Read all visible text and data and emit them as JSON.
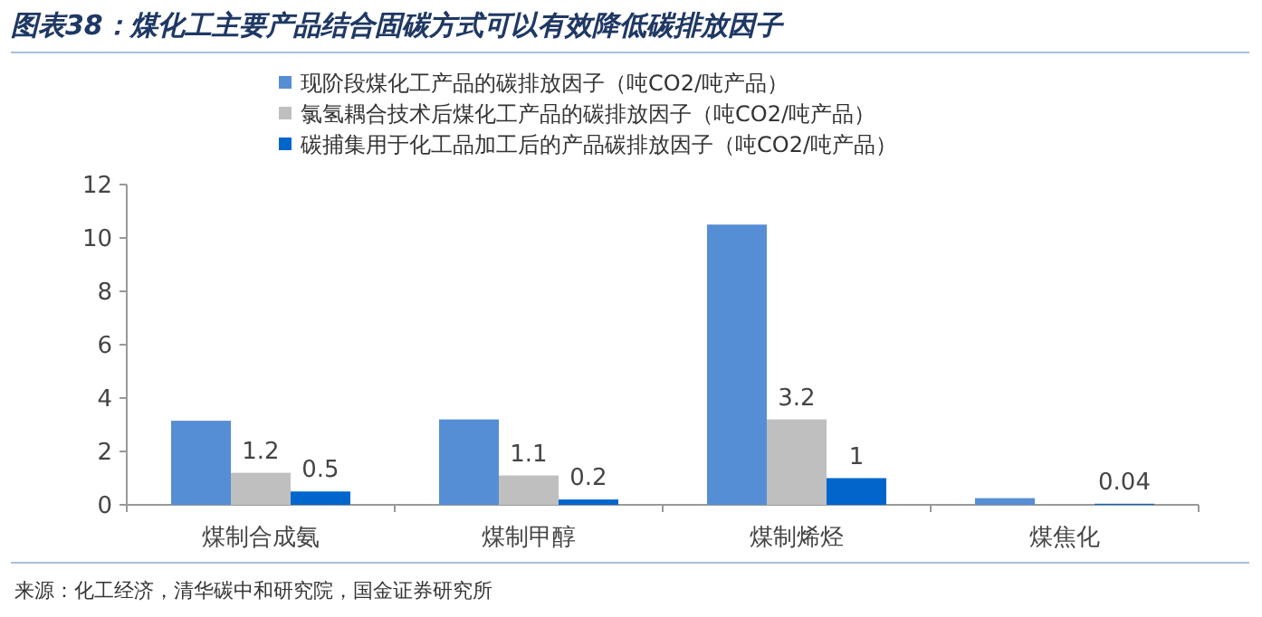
{
  "chart_data": {
    "type": "bar",
    "title": "图表38：煤化工主要产品结合固碳方式可以有效降低碳排放因子",
    "categories": [
      "煤制合成氨",
      "煤制甲醇",
      "煤制烯烃",
      "煤焦化"
    ],
    "series": [
      {
        "name": "现阶段煤化工产品的碳排放因子（吨CO2/吨产品）",
        "color": "#558ed5",
        "values": [
          3.15,
          3.2,
          10.5,
          0.25
        ]
      },
      {
        "name": "氯氢耦合技术后煤化工产品的碳排放因子（吨CO2/吨产品）",
        "color": "#bfbfbf",
        "values": [
          1.2,
          1.1,
          3.2,
          null
        ],
        "value_labels": [
          "1.2",
          "1.1",
          "3.2",
          null
        ]
      },
      {
        "name": "碳捕集用于化工品加工后的产品碳排放因子（吨CO2/吨产品）",
        "color": "#0066cc",
        "values": [
          0.5,
          0.2,
          1,
          0.04
        ],
        "value_labels": [
          "0.5",
          "0.2",
          "1",
          "0.04"
        ]
      }
    ],
    "ylim": [
      0,
      12
    ],
    "yticks": [
      0,
      2,
      4,
      6,
      8,
      10,
      12
    ],
    "legend": "top",
    "annotations": [
      "来源：化工经济，清华碳中和研究院，国金证券研究所"
    ]
  }
}
